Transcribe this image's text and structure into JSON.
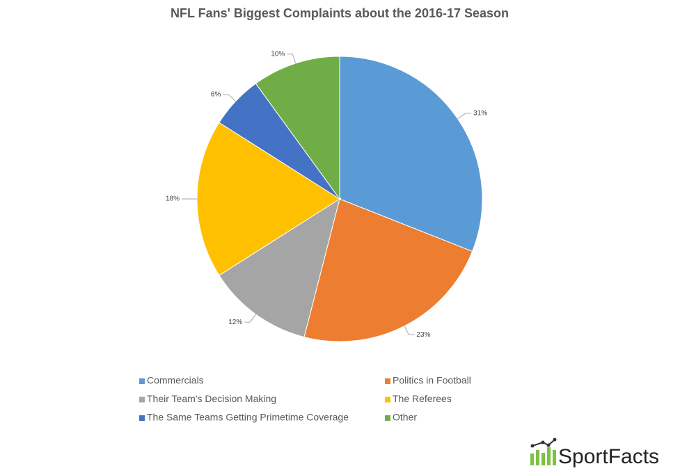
{
  "chart_data": {
    "type": "pie",
    "title": "NFL Fans' Biggest Complaints about the 2016-17 Season",
    "categories": [
      "Commercials",
      "Politics in Football",
      "Their Team's Decision Making",
      "The Referees",
      "The Same Teams Getting Primetime Coverage",
      "Other"
    ],
    "values": [
      31,
      23,
      12,
      18,
      6,
      10
    ],
    "value_labels": [
      "31%",
      "23%",
      "12%",
      "18%",
      "6%",
      "10%"
    ],
    "colors": [
      "#5b9bd5",
      "#ed7d31",
      "#a5a5a5",
      "#ffc000",
      "#4472c4",
      "#70ad47"
    ],
    "legend": "bottom"
  },
  "logo": {
    "text": "SportFacts"
  }
}
